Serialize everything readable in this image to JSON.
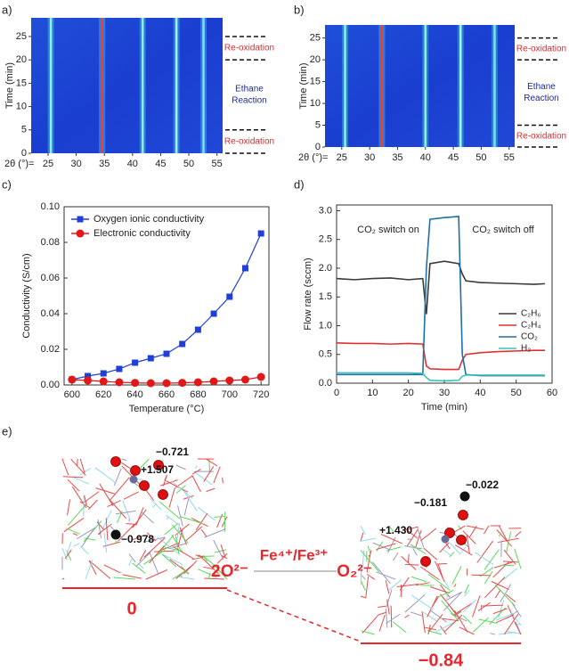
{
  "chart_data": [
    {
      "type": "heatmap",
      "panel": "a)",
      "xlabel": "2θ (°)=",
      "ylabel": "Time (min)",
      "xlim": [
        22,
        56
      ],
      "xticks": [
        25,
        30,
        35,
        40,
        45,
        50,
        55
      ],
      "ylim": [
        0,
        29
      ],
      "yticks": [
        0,
        5,
        10,
        15,
        20,
        25
      ],
      "peaks": [
        25.5,
        34.6,
        41.8,
        47.8,
        52.6
      ],
      "peak_colors": [
        "#8ff0e0",
        "#ff3a20",
        "#8ff0e0",
        "#a0f4e8",
        "#7fe0f0"
      ],
      "boundaries": [
        25,
        20,
        5,
        0
      ],
      "zones": [
        {
          "label": "Re-oxidation",
          "color": "#e8262b"
        },
        {
          "label": [
            "Ethane",
            "Reaction"
          ],
          "color": "#1a2a9a"
        },
        {
          "label": "Re-oxidation",
          "color": "#e8262b"
        }
      ]
    },
    {
      "type": "heatmap",
      "panel": "b)",
      "xlabel": "2θ (°)=",
      "ylabel": "Time (min)",
      "xlim": [
        22,
        56
      ],
      "xticks": [
        25,
        30,
        35,
        40,
        45,
        50,
        55
      ],
      "ylim": [
        0,
        28
      ],
      "yticks": [
        0,
        5,
        10,
        15,
        20,
        25
      ],
      "peaks": [
        25.6,
        32.2,
        40.0,
        46.3,
        52.4
      ],
      "peak_colors": [
        "#8ff0e0",
        "#ff3a20",
        "#8ff0e0",
        "#a0f4e8",
        "#7fe0f0"
      ],
      "boundaries": [
        25,
        20,
        5,
        0
      ],
      "zones": [
        {
          "label": "Re-oxidation",
          "color": "#e8262b"
        },
        {
          "label": [
            "Ethane",
            "Reaction"
          ],
          "color": "#1a2a9a"
        },
        {
          "label": "Re-oxidation",
          "color": "#e8262b"
        }
      ]
    },
    {
      "type": "line",
      "panel": "c)",
      "xlabel": "Temperature (°C)",
      "ylabel": "Conductivity (S/cm)",
      "xlim": [
        595,
        725
      ],
      "xticks": [
        600,
        620,
        640,
        660,
        680,
        700,
        720
      ],
      "ylim": [
        0,
        0.1
      ],
      "yticks": [
        {
          "value": 0,
          "label": "0.00"
        },
        0.02,
        0.04,
        0.06,
        0.08,
        {
          "value": 0.1,
          "label": "0.10"
        }
      ],
      "legend": "upper left",
      "x": [
        600,
        610,
        620,
        630,
        640,
        650,
        660,
        670,
        680,
        690,
        700,
        710,
        720
      ],
      "series": [
        {
          "name": "Oxygen ionic conductivity",
          "color": "#1f3fd8",
          "marker": "square",
          "values": [
            0.003,
            0.005,
            0.0065,
            0.009,
            0.0125,
            0.015,
            0.0175,
            0.023,
            0.031,
            0.04,
            0.0495,
            0.0655,
            0.085
          ]
        },
        {
          "name": "Electronic conductivity",
          "color": "#e01818",
          "marker": "circle",
          "values": [
            0.003,
            0.0025,
            0.002,
            0.0015,
            0.0012,
            0.001,
            0.001,
            0.0012,
            0.0015,
            0.002,
            0.0025,
            0.003,
            0.0045
          ]
        }
      ]
    },
    {
      "type": "line",
      "panel": "d)",
      "xlabel": "Time (min)",
      "ylabel": "Flow rate (sccm)",
      "xlim": [
        0,
        60
      ],
      "xticks": [
        0,
        10,
        20,
        30,
        40,
        50,
        60
      ],
      "ylim": [
        0,
        3.1
      ],
      "yticks": [
        {
          "value": 0,
          "label": "0.0"
        },
        0.5,
        {
          "value": 1,
          "label": "1.0"
        },
        1.5,
        {
          "value": 2,
          "label": "2.0"
        },
        2.5,
        {
          "value": 3,
          "label": "3.0"
        }
      ],
      "legend": "lower right",
      "annotations": [
        "CO₂ switch on",
        "CO₂ switch off"
      ],
      "x": [
        0,
        5,
        10,
        15,
        20,
        24,
        25,
        26,
        30,
        34,
        35,
        36,
        40,
        45,
        50,
        55,
        58
      ],
      "series": [
        {
          "name": "C₂H₆",
          "color": "#3a3a3a",
          "values": [
            1.82,
            1.8,
            1.82,
            1.83,
            1.8,
            1.82,
            1.2,
            2.08,
            2.12,
            2.08,
            1.9,
            1.78,
            1.75,
            1.74,
            1.73,
            1.72,
            1.73
          ]
        },
        {
          "name": "C₂H₄",
          "color": "#e03030",
          "values": [
            0.7,
            0.69,
            0.69,
            0.68,
            0.69,
            0.68,
            0.3,
            0.25,
            0.24,
            0.24,
            0.4,
            0.5,
            0.53,
            0.55,
            0.56,
            0.57,
            0.57
          ]
        },
        {
          "name": "CO₂",
          "color": "#1f6fa8",
          "values": [
            0.15,
            0.15,
            0.15,
            0.15,
            0.15,
            0.15,
            2.0,
            2.85,
            2.88,
            2.9,
            0.5,
            0.15,
            0.13,
            0.13,
            0.13,
            0.13,
            0.13
          ]
        },
        {
          "name": "H₂",
          "color": "#3cc0c0",
          "values": [
            0.18,
            0.18,
            0.18,
            0.18,
            0.18,
            0.17,
            0.1,
            0.05,
            0.04,
            0.05,
            0.12,
            0.14,
            0.14,
            0.14,
            0.14,
            0.14,
            0.14
          ]
        }
      ]
    }
  ],
  "diagram": {
    "panel": "e)",
    "left_charges": [
      "−0.721",
      "+1.507",
      "−0.978"
    ],
    "right_charges": [
      "−0.022",
      "−0.181",
      "+1.430"
    ],
    "reactant": "2O²⁻",
    "couple": "Fe⁴⁺/Fe³⁺",
    "product": "O₂²⁻",
    "left_energy": "0",
    "right_energy": "−0.84"
  }
}
